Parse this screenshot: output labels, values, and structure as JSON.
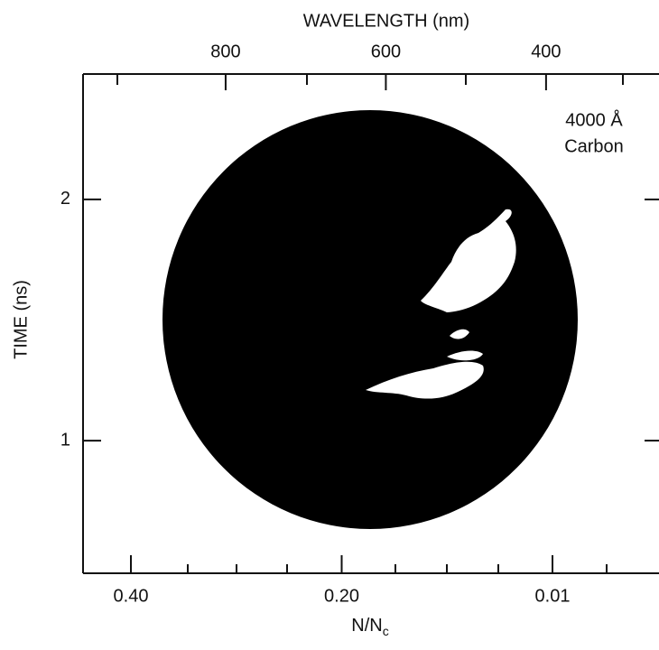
{
  "chart_data": {
    "type": "image-plot",
    "top_axis": {
      "label": "WAVELENGTH (nm)",
      "xlim": [
        978,
        259
      ],
      "xticks": [
        800,
        600,
        400
      ]
    },
    "ylabel": "TIME (ns)",
    "ylim": [
      0.45,
      2.52
    ],
    "yticks": [
      1,
      2
    ],
    "bottom_axis": {
      "label": {
        "text": "N/N",
        "subscript": "c"
      },
      "categories": [
        "0.40",
        "0.20",
        "0.01"
      ]
    },
    "annotations": [
      "4000 Å",
      "Carbon"
    ]
  }
}
